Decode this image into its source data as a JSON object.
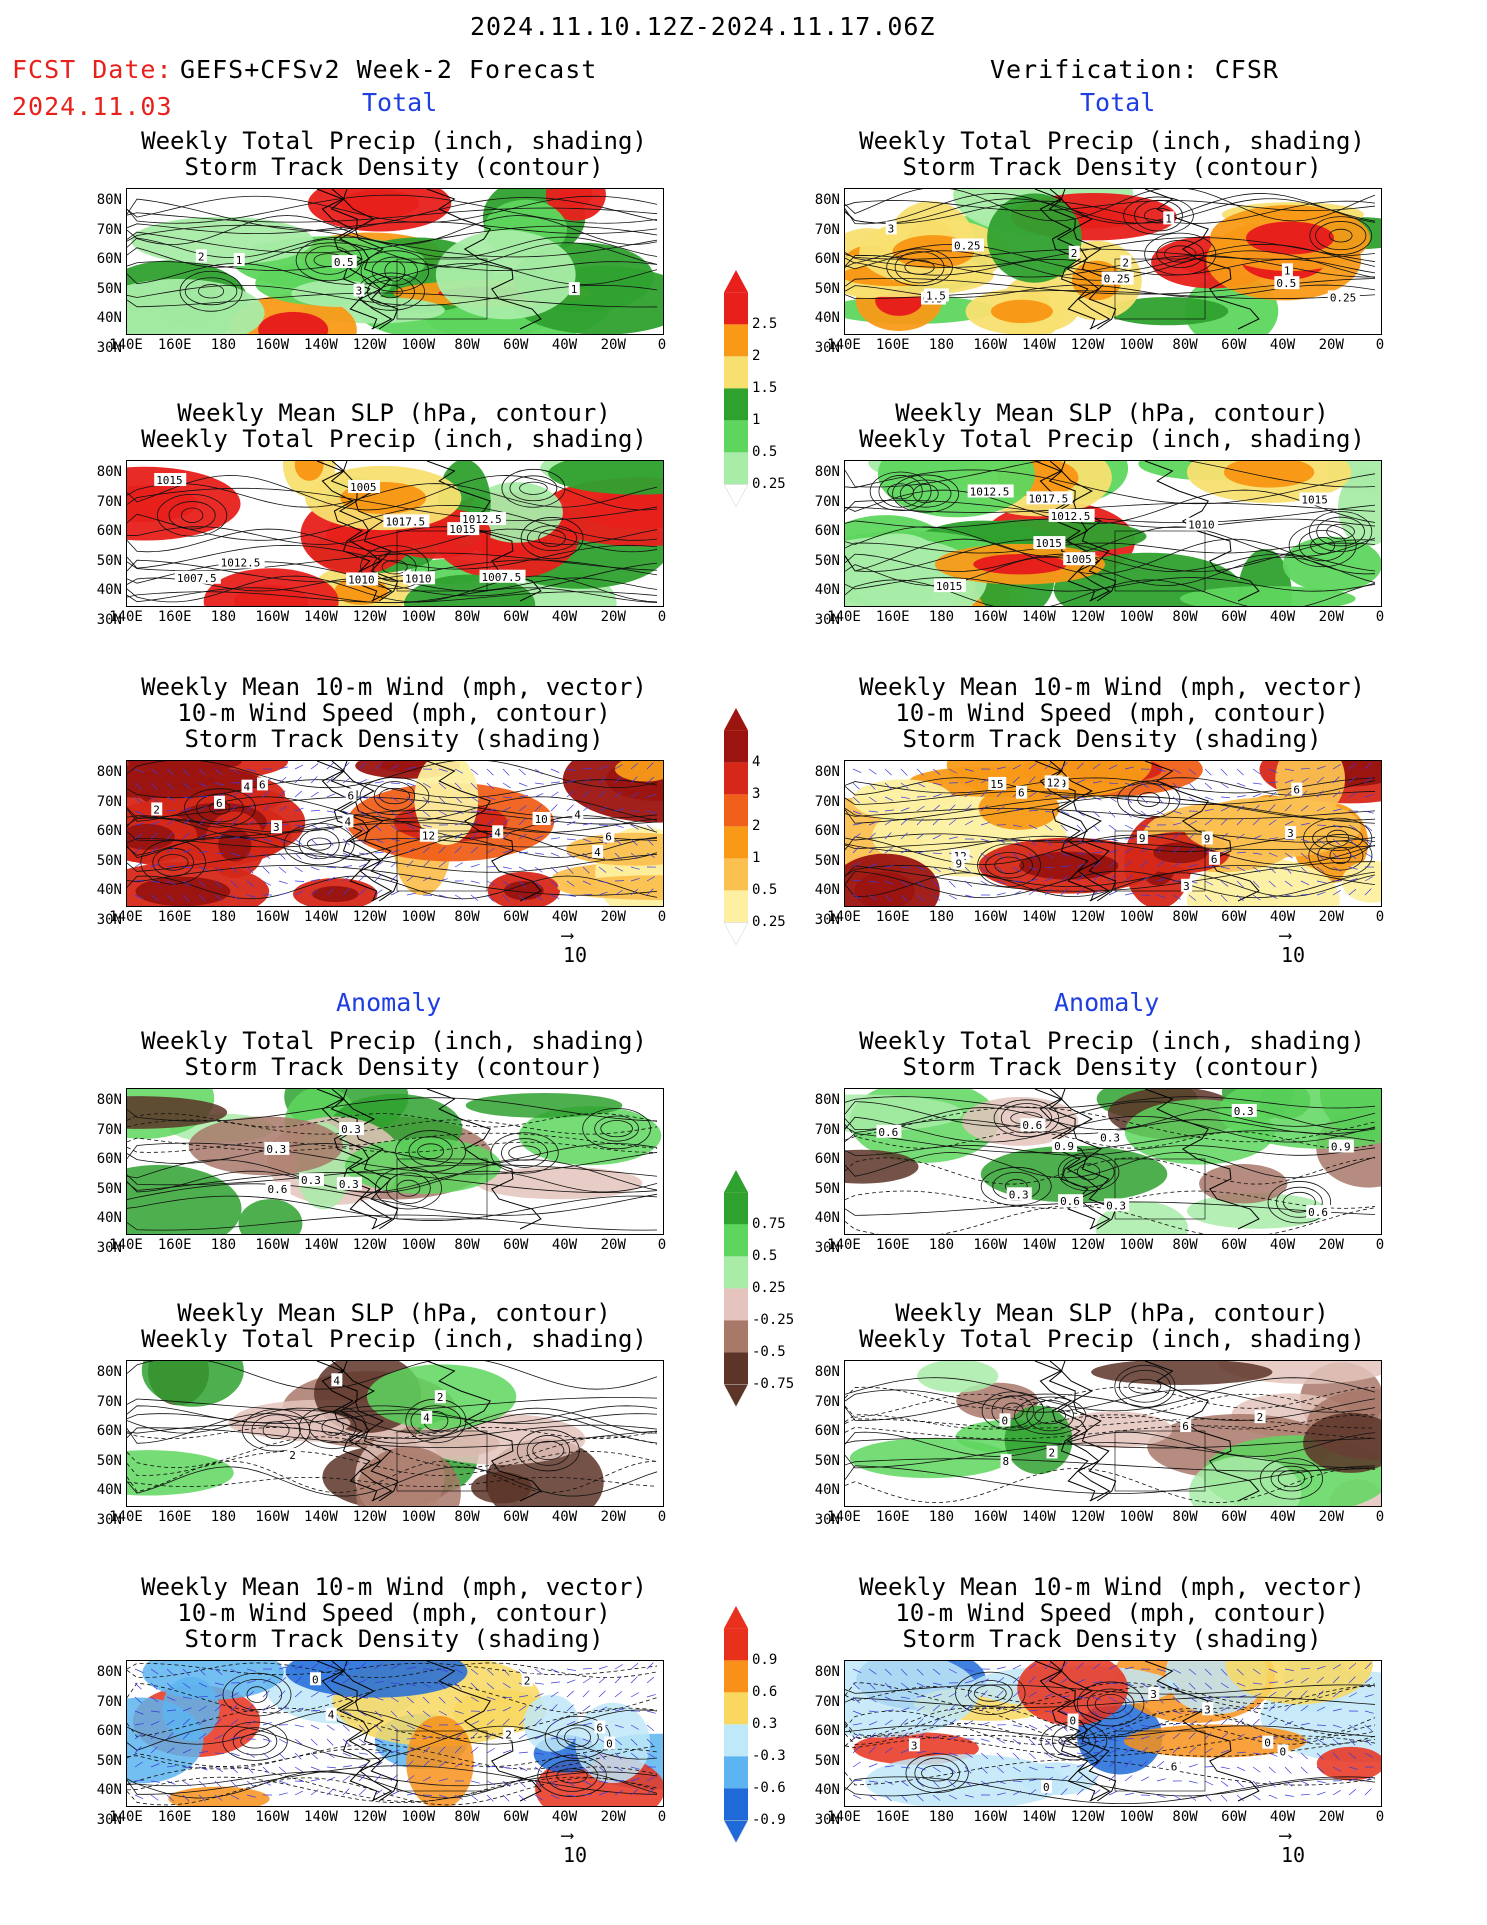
{
  "header": {
    "date_range": "2024.11.10.12Z-2024.11.17.06Z",
    "fcst_date_label": "FCST Date:",
    "fcst_model": "GEFS+CFSv2 Week-2 Forecast",
    "fcst_date": "2024.11.03",
    "verification": "Verification: CFSR"
  },
  "sections": {
    "total": "Total",
    "anomaly": "Anomaly"
  },
  "titles": {
    "precip_storm": [
      "Weekly Total Precip (inch, shading)",
      "Storm Track Density (contour)"
    ],
    "slp_precip": [
      "Weekly Mean SLP (hPa, contour)",
      "Weekly Total Precip (inch, shading)"
    ],
    "wind_storm": [
      "Weekly Mean 10-m Wind (mph, vector)",
      "10-m Wind Speed (mph, contour)",
      "Storm Track Density (shading)"
    ]
  },
  "axes": {
    "lat_labels": [
      "80N",
      "70N",
      "60N",
      "50N",
      "40N",
      "30N"
    ],
    "lon_labels": [
      "140E",
      "160E",
      "180",
      "160W",
      "140W",
      "120W",
      "100W",
      "80W",
      "60W",
      "40W",
      "20W",
      "0"
    ]
  },
  "vector_ref": "10",
  "colorbars": {
    "precip": {
      "labels": [
        "2.5",
        "2",
        "1.5",
        "1",
        "0.5",
        "0.25"
      ],
      "colors": [
        "#e8201c",
        "#f89a18",
        "#f8e070",
        "#2fa12f",
        "#5ed65e",
        "#a8eca8"
      ]
    },
    "storm": {
      "labels": [
        "4",
        "3",
        "2",
        "1",
        "0.5",
        "0.25"
      ],
      "colors": [
        "#9c1410",
        "#d62818",
        "#f0601a",
        "#f89a18",
        "#fbc050",
        "#fdf0a0"
      ]
    },
    "precip_anom": {
      "labels": [
        "0.75",
        "0.5",
        "0.25",
        "-0.25",
        "-0.5",
        "-0.75"
      ],
      "colors": [
        "#2fa12f",
        "#5ed65e",
        "#a8eca8",
        "#e4c4bc",
        "#a87868",
        "#5c3428"
      ]
    },
    "storm_anom": {
      "labels": [
        "0.9",
        "0.6",
        "0.3",
        "-0.3",
        "-0.6",
        "-0.9"
      ],
      "colors": [
        "#e8301c",
        "#f8901a",
        "#f8d860",
        "#bfe8f8",
        "#5cb4f0",
        "#1f6ad8"
      ]
    }
  },
  "panel_contour_labels": {
    "f_total_precip": [
      "1",
      "2",
      "1",
      "3",
      "0.5"
    ],
    "v_total_precip": [
      "0.5",
      "1",
      "0.25",
      "2",
      "3",
      "0.25",
      "1",
      "0.5",
      "1.5",
      "2",
      "0.25"
    ],
    "f_total_slp": [
      "1010",
      "1012.5",
      "1007.5",
      "1005",
      "1007.5",
      "1010",
      "1015",
      "1015",
      "1012.5",
      "1017.5"
    ],
    "v_total_slp": [
      "1012.5",
      "1010",
      "1015",
      "1005",
      "1015",
      "1017.5",
      "1012.5",
      "1015"
    ],
    "f_total_wind": [
      "4",
      "4",
      "6",
      "4",
      "2",
      "3",
      "6",
      "10",
      "4",
      "6",
      "4",
      "6",
      "12"
    ],
    "v_total_wind": [
      "9",
      "6",
      "6",
      "9",
      "3",
      "12",
      "6",
      "9",
      "15",
      "12",
      "9",
      "3"
    ],
    "f_anom_precip": [
      "0.6",
      "0.3",
      "0.3",
      "0.3",
      "0.3"
    ],
    "v_anom_precip": [
      "0.6",
      "0.3",
      "0.3",
      "0.9",
      "0.9",
      "0.6",
      "0.6",
      "0.3",
      "0.6",
      "0.3"
    ],
    "f_anom_slp": [
      "2",
      "2",
      "4",
      "4"
    ],
    "v_anom_slp": [
      "0",
      "2",
      "6",
      "2",
      "8"
    ],
    "f_anom_wind": [
      "0",
      "0",
      "2",
      "4",
      "6",
      "2"
    ],
    "v_anom_wind": [
      "6",
      "0",
      "0",
      "0",
      "3",
      "3",
      "0",
      "3"
    ]
  }
}
